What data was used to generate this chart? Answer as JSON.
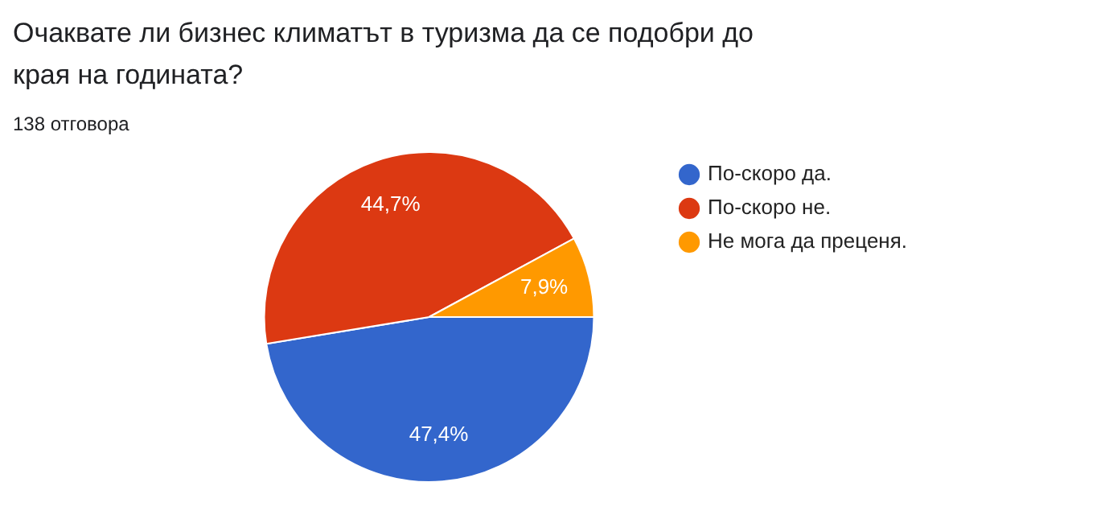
{
  "chart_data": {
    "type": "pie",
    "title": "Очаквате ли бизнес климатът в туризма да се подобри до края на годината?",
    "subtitle": "138 отговора",
    "categories": [
      "По-скоро да.",
      "По-скоро не.",
      "Не мога да преценя."
    ],
    "values": [
      47.4,
      44.7,
      7.9
    ],
    "colors": [
      "#3366cc",
      "#dc3912",
      "#ff9900"
    ],
    "value_labels": [
      "47,4%",
      "44,7%",
      "7,9%"
    ],
    "legend": "right"
  }
}
